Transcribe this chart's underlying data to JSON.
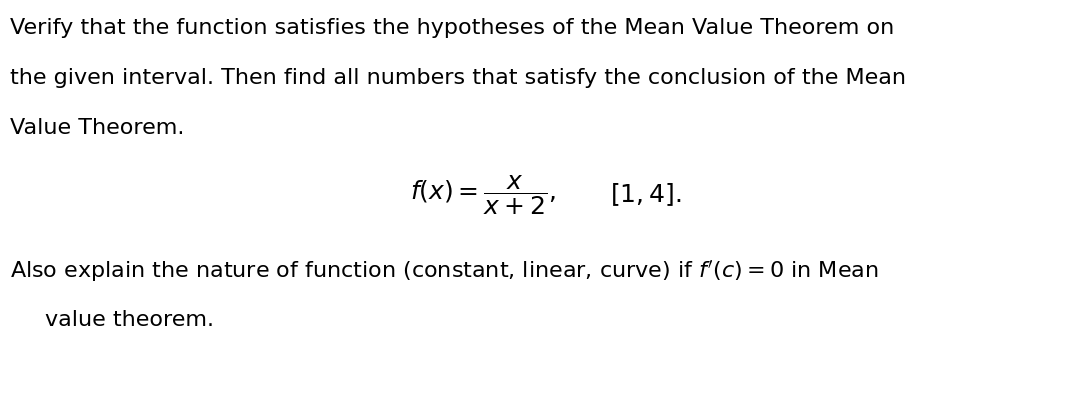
{
  "background_color": "#ffffff",
  "line1": "Verify that the function satisfies the hypotheses of the Mean Value Theorem on",
  "line2": "the given interval. Then find all numbers that satisfy the conclusion of the Mean",
  "line3": "Value Theorem.",
  "formula_fx": "$f(x) = \\dfrac{x}{x + 2},$",
  "formula_interval": "$[1,4].$",
  "line5_pre": "Also explain the nature of function (constant, linear, curve) if ",
  "line5_math": "$f'(c) = 0$",
  "line5_post": " in Mean",
  "line6": "value theorem.",
  "text_color": "#000000",
  "font_size_body": 16.0,
  "font_size_formula": 18.0,
  "fig_width": 10.8,
  "fig_height": 3.95,
  "dpi": 100
}
